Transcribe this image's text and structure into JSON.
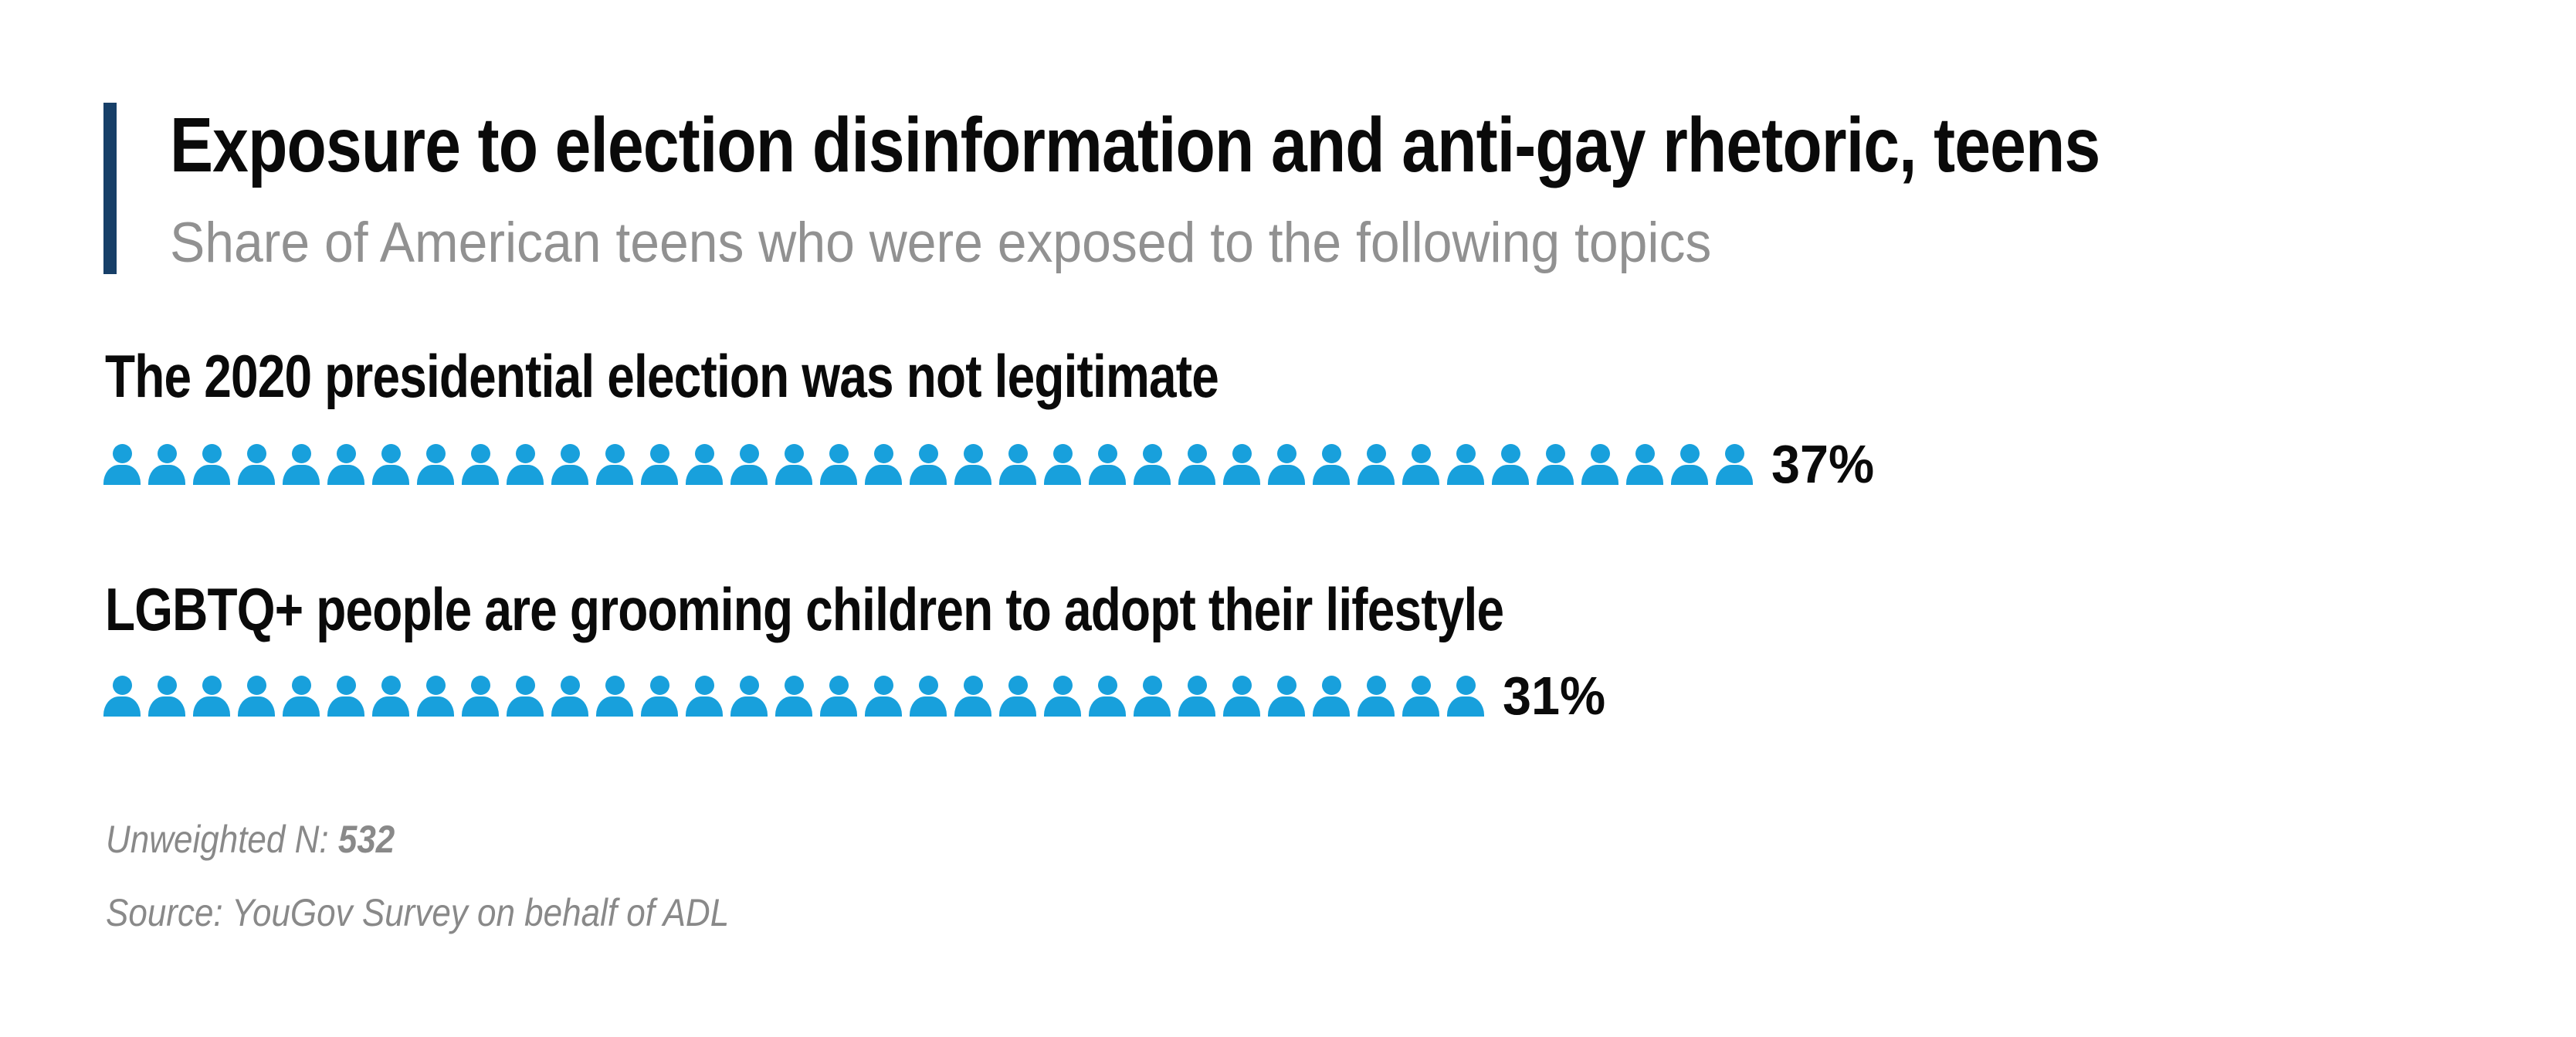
{
  "header": {
    "title": "Exposure to election disinformation and anti-gay rhetoric, teens",
    "subtitle": "Share of American teens who were exposed to the following topics"
  },
  "rows": [
    {
      "label": "The 2020 presidential election was not legitimate",
      "count": 37,
      "percent_label": "37%"
    },
    {
      "label": "LGBTQ+ people are grooming children to adopt their lifestyle",
      "count": 31,
      "percent_label": "31%"
    }
  ],
  "footer": {
    "n_label": "Unweighted N:",
    "n_value": "532",
    "source": "Source: YouGov Survey on behalf of ADL"
  },
  "colors": {
    "icon_blue": "#18a0dc",
    "accent_navy": "#173f68",
    "subtitle_gray": "#919191",
    "note_gray": "#898989",
    "text_black": "#0a0a0a"
  },
  "chart_data": {
    "type": "bar",
    "variant": "pictogram",
    "title": "Exposure to election disinformation and anti-gay rhetoric, teens",
    "subtitle": "Share of American teens who were exposed to the following topics",
    "categories": [
      "The 2020 presidential election was not legitimate",
      "LGBTQ+ people are grooming children to adopt their lifestyle"
    ],
    "values": [
      37,
      31
    ],
    "value_labels": [
      "37%",
      "31%"
    ],
    "unit": "percent",
    "icon_unit": "1 person icon = 1 percentage point",
    "xlim": [
      0,
      100
    ],
    "legend": false,
    "grid": false,
    "notes": [
      "Unweighted N: 532",
      "Source: YouGov Survey on behalf of ADL"
    ]
  }
}
